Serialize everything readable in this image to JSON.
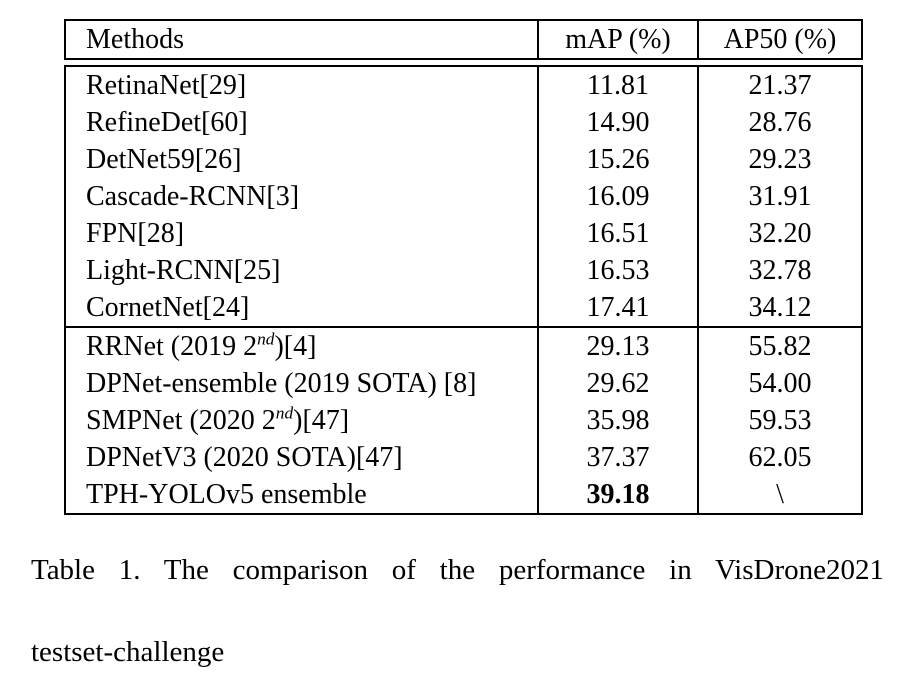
{
  "page": {
    "background_color": "#ffffff",
    "text_color": "#000000",
    "border_color": "#000000"
  },
  "chart_data": {
    "type": "table",
    "title": "Table 1. The comparison of the performance in VisDrone2021 testset-challenge",
    "columns": [
      "Methods",
      "mAP (%)",
      "AP50 (%)"
    ],
    "rows": [
      [
        "RetinaNet[29]",
        11.81,
        21.37
      ],
      [
        "RefineDet[60]",
        14.9,
        28.76
      ],
      [
        "DetNet59[26]",
        15.26,
        29.23
      ],
      [
        "Cascade-RCNN[3]",
        16.09,
        31.91
      ],
      [
        "FPN[28]",
        16.51,
        32.2
      ],
      [
        "Light-RCNN[25]",
        16.53,
        32.78
      ],
      [
        "CornetNet[24]",
        17.41,
        34.12
      ],
      [
        "RRNet (2019 2nd)[4]",
        29.13,
        55.82
      ],
      [
        "DPNet-ensemble (2019 SOTA) [8]",
        29.62,
        54.0
      ],
      [
        "SMPNet (2020 2nd)[47]",
        35.98,
        59.53
      ],
      [
        "DPNetV3 (2020 SOTA)[47]",
        37.37,
        62.05
      ],
      [
        "TPH-YOLOv5 ensemble",
        39.18,
        "\\"
      ]
    ]
  },
  "table": {
    "headers": [
      "Methods",
      "mAP (%)",
      "AP50 (%)"
    ],
    "rows": [
      {
        "method_pre": "RetinaNet[29]",
        "method_sup": "",
        "method_post": "",
        "map": "11.81",
        "ap50": "21.37",
        "map_bold": false,
        "section_start": false
      },
      {
        "method_pre": "RefineDet[60]",
        "method_sup": "",
        "method_post": "",
        "map": "14.90",
        "ap50": "28.76",
        "map_bold": false,
        "section_start": false
      },
      {
        "method_pre": "DetNet59[26]",
        "method_sup": "",
        "method_post": "",
        "map": "15.26",
        "ap50": "29.23",
        "map_bold": false,
        "section_start": false
      },
      {
        "method_pre": "Cascade-RCNN[3]",
        "method_sup": "",
        "method_post": "",
        "map": "16.09",
        "ap50": "31.91",
        "map_bold": false,
        "section_start": false
      },
      {
        "method_pre": "FPN[28]",
        "method_sup": "",
        "method_post": "",
        "map": "16.51",
        "ap50": "32.20",
        "map_bold": false,
        "section_start": false
      },
      {
        "method_pre": "Light-RCNN[25]",
        "method_sup": "",
        "method_post": "",
        "map": "16.53",
        "ap50": "32.78",
        "map_bold": false,
        "section_start": false
      },
      {
        "method_pre": "CornetNet[24]",
        "method_sup": "",
        "method_post": "",
        "map": "17.41",
        "ap50": "34.12",
        "map_bold": false,
        "section_start": false
      },
      {
        "method_pre": "RRNet (2019 2",
        "method_sup": "nd",
        "method_post": ")[4]",
        "map": "29.13",
        "ap50": "55.82",
        "map_bold": false,
        "section_start": true
      },
      {
        "method_pre": "DPNet-ensemble (2019 SOTA) [8]",
        "method_sup": "",
        "method_post": "",
        "map": "29.62",
        "ap50": "54.00",
        "map_bold": false,
        "section_start": false
      },
      {
        "method_pre": "SMPNet (2020 2",
        "method_sup": "nd",
        "method_post": ")[47]",
        "map": "35.98",
        "ap50": "59.53",
        "map_bold": false,
        "section_start": false
      },
      {
        "method_pre": "DPNetV3 (2020 SOTA)[47]",
        "method_sup": "",
        "method_post": "",
        "map": "37.37",
        "ap50": "62.05",
        "map_bold": false,
        "section_start": false
      },
      {
        "method_pre": "TPH-YOLOv5 ensemble",
        "method_sup": "",
        "method_post": "",
        "map": "39.18",
        "ap50": "\\",
        "map_bold": true,
        "section_start": false
      }
    ]
  },
  "caption": {
    "line1": "Table 1. The comparison of the performance in VisDrone2021",
    "line2": "testset-challenge"
  }
}
